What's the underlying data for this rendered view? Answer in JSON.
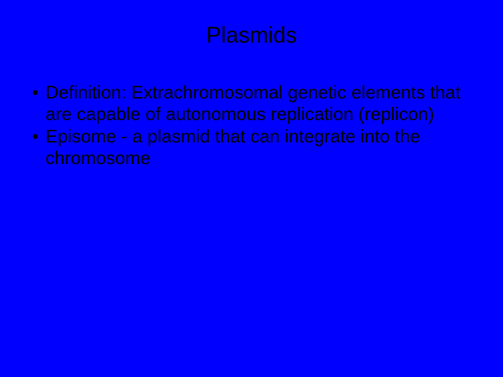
{
  "slide": {
    "background_color": "#0000ff",
    "text_color": "#000000",
    "title": "Plasmids",
    "title_fontsize": 32,
    "body_fontsize": 26,
    "bullets": [
      {
        "marker": "•",
        "text": "Definition: Extrachromosomal genetic elements that are capable of autonomous replication (replicon)"
      },
      {
        "marker": "•",
        "text": "Episome - a plasmid that can integrate into the chromosome"
      }
    ]
  }
}
